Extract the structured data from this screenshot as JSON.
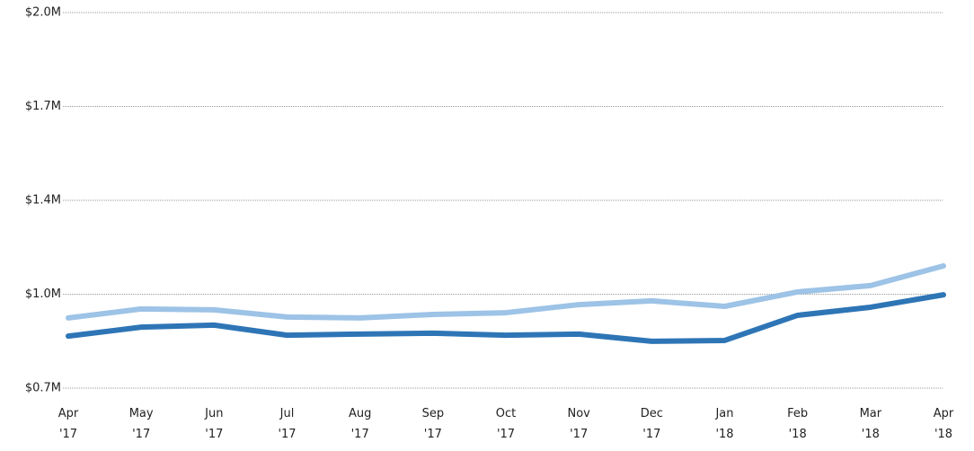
{
  "chart_data": {
    "type": "line",
    "categories": [
      "Apr '17",
      "May '17",
      "Jun '17",
      "Jul '17",
      "Aug '17",
      "Sep '17",
      "Oct '17",
      "Nov '17",
      "Dec '17",
      "Jan '18",
      "Feb '18",
      "Mar '18",
      "Apr '18"
    ],
    "series": [
      {
        "color": "#9dc3e6",
        "values": [
          943000,
          974000,
          971000,
          946000,
          943000,
          955000,
          961000,
          989000,
          1002000,
          983000,
          1033000,
          1055000,
          1123000
        ]
      },
      {
        "color": "#2e75b6",
        "values": [
          880000,
          911000,
          918000,
          883000,
          887000,
          890000,
          883000,
          887000,
          862000,
          865000,
          952000,
          980000,
          1023000
        ]
      }
    ],
    "ylim": [
      700000,
      2000000
    ],
    "yticks": [
      {
        "value": 700000,
        "label": "$0.7M"
      },
      {
        "value": 1025000,
        "label": "$1.0M"
      },
      {
        "value": 1350000,
        "label": "$1.4M"
      },
      {
        "value": 1675000,
        "label": "$1.7M"
      },
      {
        "value": 2000000,
        "label": "$2.0M"
      }
    ],
    "grid": true
  }
}
